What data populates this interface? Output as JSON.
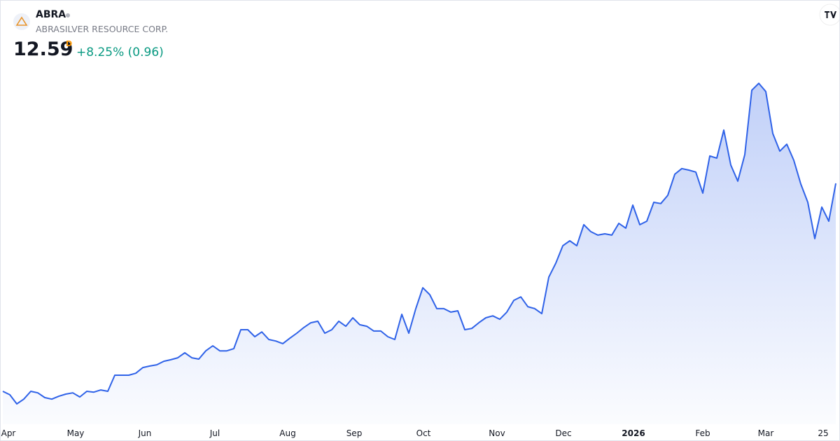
{
  "header": {
    "symbol": "ABRA",
    "name": "ABRASILVER RESOURCE CORP.",
    "price": 12.59,
    "interval": "D",
    "change": "+8.25% (0.96)"
  },
  "chart_data": {
    "type": "area",
    "color": "#2f62e8",
    "values": [
      3.03,
      2.87,
      2.45,
      2.67,
      3.03,
      2.96,
      2.74,
      2.67,
      2.8,
      2.9,
      2.96,
      2.77,
      3.03,
      2.99,
      3.09,
      3.03,
      3.77,
      3.77,
      3.77,
      3.86,
      4.12,
      4.19,
      4.25,
      4.41,
      4.48,
      4.57,
      4.8,
      4.57,
      4.51,
      4.89,
      5.12,
      4.89,
      4.89,
      4.99,
      5.86,
      5.86,
      5.54,
      5.76,
      5.41,
      5.34,
      5.22,
      5.47,
      5.7,
      5.96,
      6.18,
      6.25,
      5.7,
      5.86,
      6.25,
      6.02,
      6.41,
      6.09,
      6.02,
      5.8,
      5.8,
      5.54,
      5.41,
      6.57,
      5.7,
      6.83,
      7.79,
      7.47,
      6.83,
      6.83,
      6.67,
      6.73,
      5.86,
      5.92,
      6.18,
      6.41,
      6.5,
      6.34,
      6.67,
      7.21,
      7.37,
      6.92,
      6.83,
      6.6,
      8.28,
      8.92,
      9.72,
      9.95,
      9.72,
      10.69,
      10.37,
      10.21,
      10.27,
      10.21,
      10.75,
      10.53,
      11.59,
      10.69,
      10.85,
      11.72,
      11.66,
      12.04,
      13.01,
      13.27,
      13.2,
      13.11,
      12.14,
      13.85,
      13.75,
      15.04,
      13.43,
      12.69,
      13.91,
      16.87,
      17.19,
      16.81,
      14.88,
      14.07,
      14.39,
      13.65,
      12.56,
      11.72,
      10.05,
      11.5,
      10.85,
      12.59
    ],
    "xlim": [
      0,
      119
    ],
    "xticks": [
      {
        "value": 0.8,
        "label": "Apr"
      },
      {
        "value": 10.4,
        "label": "May"
      },
      {
        "value": 20.3,
        "label": "Jun"
      },
      {
        "value": 30.3,
        "label": "Jul"
      },
      {
        "value": 40.7,
        "label": "Aug"
      },
      {
        "value": 50.2,
        "label": "Sep"
      },
      {
        "value": 60.1,
        "label": "Oct"
      },
      {
        "value": 70.6,
        "label": "Nov"
      },
      {
        "value": 80.1,
        "label": "Dec"
      },
      {
        "value": 90.1,
        "label": "2026"
      },
      {
        "value": 100,
        "label": "Feb"
      },
      {
        "value": 109,
        "label": "Mar"
      },
      {
        "value": 117.2,
        "label": "25"
      }
    ]
  }
}
